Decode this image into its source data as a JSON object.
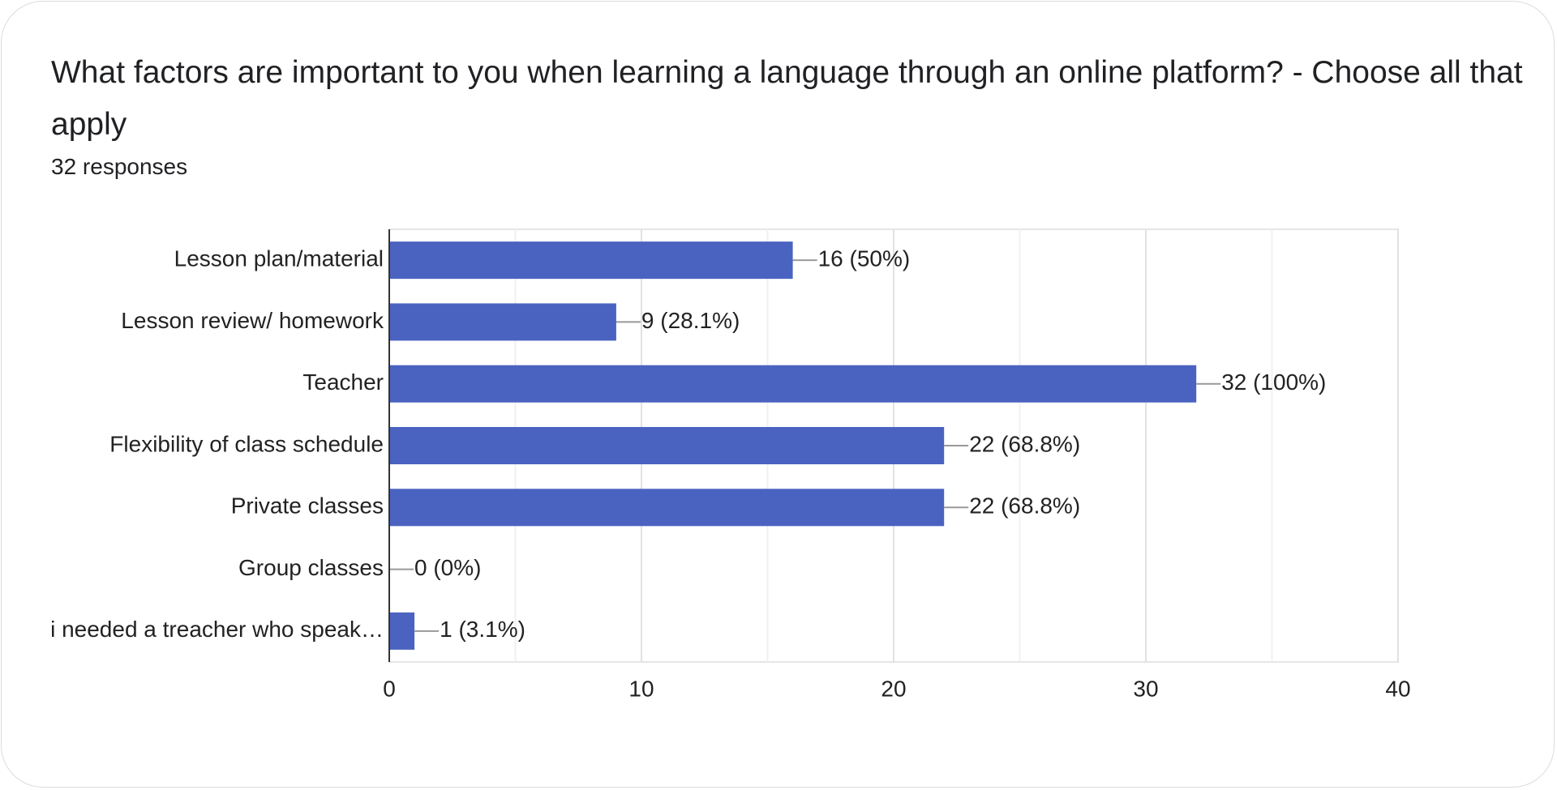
{
  "chart_data": {
    "type": "barh",
    "title": "What factors are important to you when learning a language through an online platform? - Choose all that apply",
    "subtitle": "32 responses",
    "categories": [
      "Lesson plan/material",
      "Lesson review/ homework",
      "Teacher",
      "Flexibility of class schedule",
      "Private classes",
      "Group classes",
      "i needed a treacher who speak…"
    ],
    "values": [
      16,
      9,
      32,
      22,
      22,
      0,
      1
    ],
    "value_labels": [
      "16 (50%)",
      "9 (28.1%)",
      "32 (100%)",
      "22 (68.8%)",
      "22 (68.8%)",
      "0 (0%)",
      "1 (3.1%)"
    ],
    "color": "#4a63c1",
    "xlim": [
      0,
      40
    ],
    "xticks": [
      0,
      10,
      20,
      30,
      40
    ],
    "xminorticks": [
      5,
      15,
      25,
      35
    ],
    "grid": true
  }
}
